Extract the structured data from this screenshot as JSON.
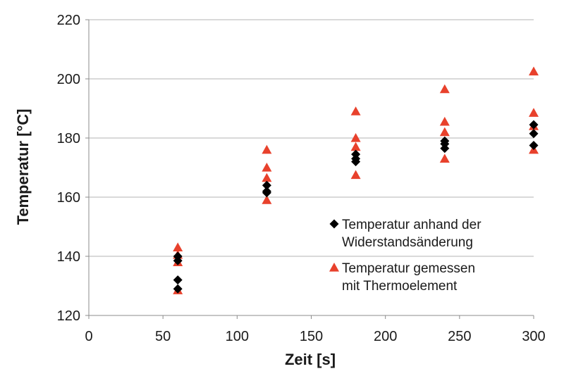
{
  "chart_data": {
    "type": "scatter",
    "xlabel": "Zeit [s]",
    "ylabel": "Temperatur [°C]",
    "xlim": [
      0,
      300
    ],
    "ylim": [
      120,
      220
    ],
    "x_ticks": [
      0,
      50,
      100,
      150,
      200,
      250,
      300
    ],
    "y_ticks": [
      120,
      140,
      160,
      180,
      200,
      220
    ],
    "grid": "horizontal",
    "legend_position": "lower-right",
    "series": [
      {
        "name": "Temperatur anhand der Widerstandsänderung",
        "name_lines": [
          "Temperatur anhand der",
          "Widerstandsänderung"
        ],
        "marker": "diamond",
        "color": "#000000",
        "points": [
          [
            60,
            140
          ],
          [
            60,
            138.5
          ],
          [
            60,
            132
          ],
          [
            60,
            129
          ],
          [
            120,
            164
          ],
          [
            120,
            162
          ],
          [
            120,
            161.5
          ],
          [
            180,
            174.5
          ],
          [
            180,
            173
          ],
          [
            180,
            172
          ],
          [
            240,
            179
          ],
          [
            240,
            178
          ],
          [
            240,
            176.5
          ],
          [
            300,
            184.5
          ],
          [
            300,
            181.5
          ],
          [
            300,
            177.5
          ]
        ]
      },
      {
        "name": "Temperatur gemessen mit Thermoelement",
        "name_lines": [
          "Temperatur gemessen",
          "mit Thermoelement"
        ],
        "marker": "triangle",
        "color": "#e8412c",
        "points": [
          [
            60,
            143
          ],
          [
            60,
            140.5
          ],
          [
            60,
            138
          ],
          [
            60,
            128.5
          ],
          [
            120,
            176
          ],
          [
            120,
            170
          ],
          [
            120,
            166.5
          ],
          [
            120,
            159
          ],
          [
            180,
            189
          ],
          [
            180,
            180
          ],
          [
            180,
            177
          ],
          [
            180,
            167.5
          ],
          [
            240,
            196.5
          ],
          [
            240,
            185.5
          ],
          [
            240,
            182
          ],
          [
            240,
            173
          ],
          [
            300,
            202.5
          ],
          [
            300,
            188.5
          ],
          [
            300,
            184
          ],
          [
            300,
            176
          ]
        ]
      }
    ]
  }
}
